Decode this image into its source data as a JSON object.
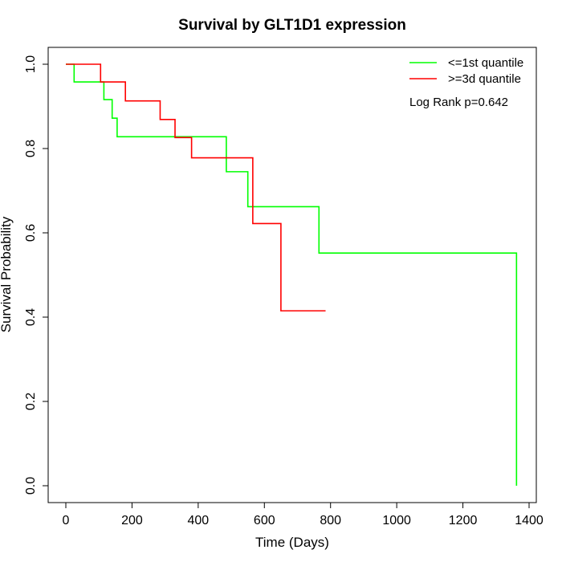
{
  "chart_data": {
    "type": "line",
    "step": true,
    "title": "Survival by GLT1D1 expression",
    "xlabel": "Time (Days)",
    "ylabel": "Survival Probability",
    "xlim": [
      0,
      1400
    ],
    "ylim": [
      0,
      1.0
    ],
    "x_ticks": [
      0,
      200,
      400,
      600,
      800,
      1000,
      1200,
      1400
    ],
    "y_ticks": [
      0.0,
      0.2,
      0.4,
      0.6,
      0.8,
      1.0
    ],
    "x_tick_labels": [
      "0",
      "200",
      "400",
      "600",
      "800",
      "1000",
      "1200",
      "1400"
    ],
    "y_tick_labels": [
      "0.0",
      "0.2",
      "0.4",
      "0.6",
      "0.8",
      "1.0"
    ],
    "legend_position": "top-right",
    "annotation": "Log Rank p=0.642",
    "series": [
      {
        "name": "<=1st quantile",
        "color": "#00ff00",
        "x": [
          0,
          25,
          115,
          140,
          155,
          485,
          550,
          765,
          1362,
          1362
        ],
        "y": [
          1.0,
          0.958,
          0.916,
          0.872,
          0.828,
          0.745,
          0.662,
          0.552,
          0.552,
          0.0
        ]
      },
      {
        "name": ">=3d quantile",
        "color": "#ff0000",
        "x": [
          0,
          105,
          180,
          285,
          330,
          380,
          565,
          650,
          785
        ],
        "y": [
          1.0,
          0.958,
          0.913,
          0.869,
          0.826,
          0.778,
          0.622,
          0.415,
          0.415
        ]
      }
    ]
  }
}
